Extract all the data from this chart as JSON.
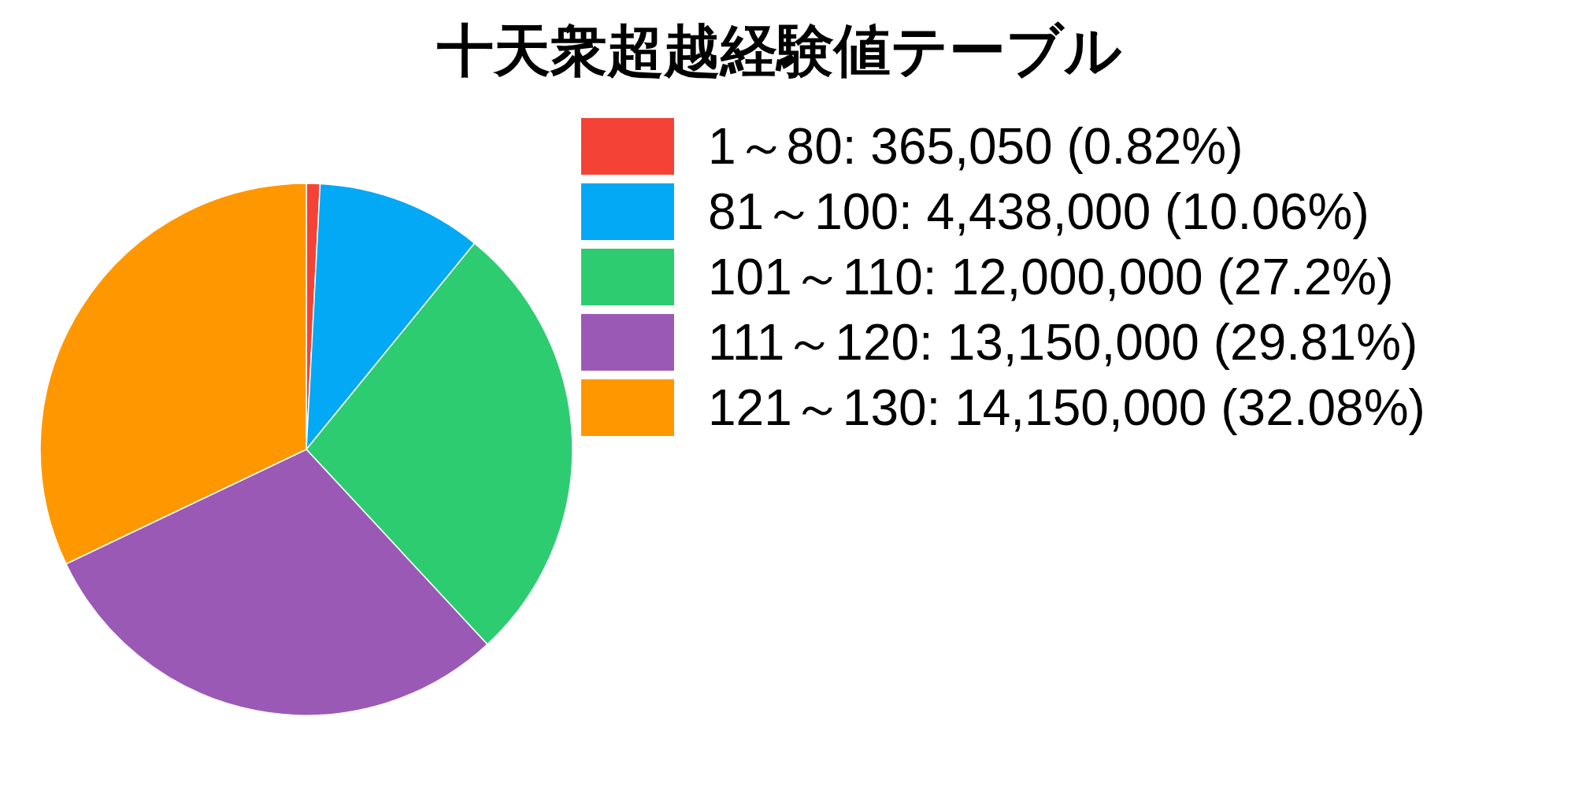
{
  "chart_data": {
    "type": "pie",
    "title": "十天衆超越経験値テーブル",
    "categories": [
      "1～80: 365,050 (0.82%)",
      "81～100: 4,438,000 (10.06%)",
      "101～110: 12,000,000 (27.2%)",
      "111～120: 13,150,000 (29.81%)",
      "121～130: 14,150,000 (32.08%)"
    ],
    "values": [
      365050,
      4438000,
      12000000,
      13150000,
      14150000
    ],
    "colors": [
      "#f44336",
      "#03a9f4",
      "#2ecc71",
      "#9b59b6",
      "#ff9800"
    ],
    "legend": "right"
  }
}
